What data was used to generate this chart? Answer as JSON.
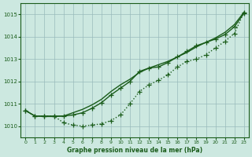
{
  "title": "Graphe pression niveau de la mer (hPa)",
  "bg_color": "#cce8e0",
  "grid_color": "#99bbbb",
  "line_color": "#1a5c1a",
  "xlim_min": -0.5,
  "xlim_max": 23.5,
  "ylim": [
    1009.5,
    1015.5
  ],
  "yticks": [
    1010,
    1011,
    1012,
    1013,
    1014,
    1015
  ],
  "xticks": [
    0,
    1,
    2,
    3,
    4,
    5,
    6,
    7,
    8,
    9,
    10,
    11,
    12,
    13,
    14,
    15,
    16,
    17,
    18,
    19,
    20,
    21,
    22,
    23
  ],
  "series_smooth": [
    1010.7,
    1010.45,
    1010.43,
    1010.43,
    1010.45,
    1010.6,
    1010.75,
    1010.95,
    1011.2,
    1011.55,
    1011.85,
    1012.1,
    1012.4,
    1012.6,
    1012.75,
    1012.9,
    1013.1,
    1013.3,
    1013.55,
    1013.75,
    1013.95,
    1014.2,
    1014.55,
    1015.1
  ],
  "series_upper": [
    1010.7,
    1010.45,
    1010.45,
    1010.45,
    1010.45,
    1010.5,
    1010.6,
    1010.8,
    1011.05,
    1011.4,
    1011.7,
    1012.0,
    1012.45,
    1012.6,
    1012.65,
    1012.85,
    1013.1,
    1013.35,
    1013.6,
    1013.75,
    1013.9,
    1014.1,
    1014.45,
    1015.05
  ],
  "series_lower": [
    1010.7,
    1010.45,
    1010.45,
    1010.45,
    1010.15,
    1010.05,
    1010.0,
    1010.05,
    1010.1,
    1010.25,
    1010.5,
    1011.0,
    1011.55,
    1011.85,
    1012.05,
    1012.3,
    1012.65,
    1012.9,
    1013.0,
    1013.2,
    1013.5,
    1013.8,
    1014.15,
    1015.1
  ],
  "marker_size": 4,
  "line_width": 1.0
}
